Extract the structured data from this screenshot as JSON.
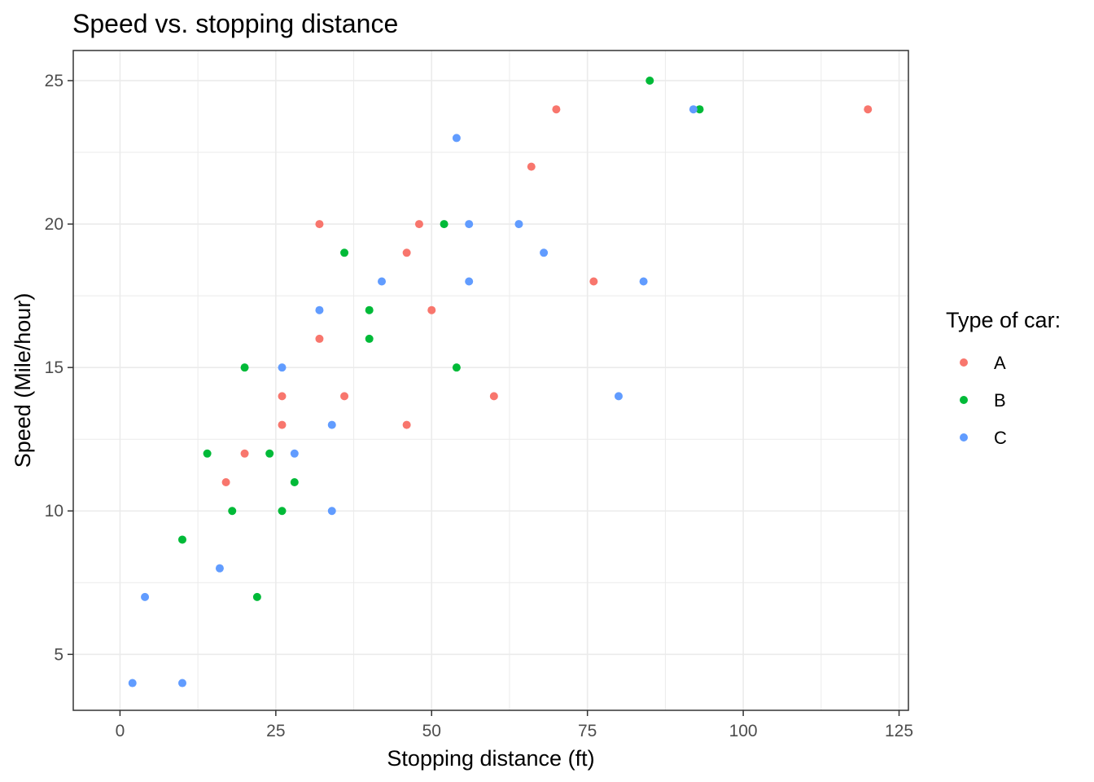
{
  "chart_data": {
    "type": "scatter",
    "title": "Speed vs. stopping distance",
    "xlabel": "Stopping distance (ft)",
    "ylabel": "Speed (Mile/hour)",
    "xlim": [
      -7.5,
      126.5
    ],
    "ylim": [
      3.05,
      26.05
    ],
    "xticks": [
      0,
      25,
      50,
      75,
      100,
      125
    ],
    "yticks": [
      5,
      10,
      15,
      20,
      25
    ],
    "grid": true,
    "legend": {
      "title": "Type of car:",
      "placement": "right"
    },
    "series": [
      {
        "name": "A",
        "color": "#F8766D",
        "points": [
          {
            "x": 70,
            "y": 24
          },
          {
            "x": 120,
            "y": 24
          },
          {
            "x": 66,
            "y": 22
          },
          {
            "x": 32,
            "y": 20
          },
          {
            "x": 48,
            "y": 20
          },
          {
            "x": 46,
            "y": 19
          },
          {
            "x": 76,
            "y": 18
          },
          {
            "x": 50,
            "y": 17
          },
          {
            "x": 32,
            "y": 16
          },
          {
            "x": 26,
            "y": 14
          },
          {
            "x": 36,
            "y": 14
          },
          {
            "x": 60,
            "y": 14
          },
          {
            "x": 26,
            "y": 13
          },
          {
            "x": 46,
            "y": 13
          },
          {
            "x": 20,
            "y": 12
          },
          {
            "x": 17,
            "y": 11
          }
        ]
      },
      {
        "name": "B",
        "color": "#00BA38",
        "points": [
          {
            "x": 85,
            "y": 25
          },
          {
            "x": 93,
            "y": 24
          },
          {
            "x": 52,
            "y": 20
          },
          {
            "x": 36,
            "y": 19
          },
          {
            "x": 40,
            "y": 17
          },
          {
            "x": 40,
            "y": 16
          },
          {
            "x": 20,
            "y": 15
          },
          {
            "x": 54,
            "y": 15
          },
          {
            "x": 14,
            "y": 12
          },
          {
            "x": 24,
            "y": 12
          },
          {
            "x": 28,
            "y": 11
          },
          {
            "x": 18,
            "y": 10
          },
          {
            "x": 26,
            "y": 10
          },
          {
            "x": 10,
            "y": 9
          },
          {
            "x": 22,
            "y": 7
          }
        ]
      },
      {
        "name": "C",
        "color": "#619CFF",
        "points": [
          {
            "x": 92,
            "y": 24
          },
          {
            "x": 54,
            "y": 23
          },
          {
            "x": 56,
            "y": 20
          },
          {
            "x": 64,
            "y": 20
          },
          {
            "x": 68,
            "y": 19
          },
          {
            "x": 42,
            "y": 18
          },
          {
            "x": 56,
            "y": 18
          },
          {
            "x": 84,
            "y": 18
          },
          {
            "x": 32,
            "y": 17
          },
          {
            "x": 26,
            "y": 15
          },
          {
            "x": 80,
            "y": 14
          },
          {
            "x": 34,
            "y": 13
          },
          {
            "x": 28,
            "y": 12
          },
          {
            "x": 34,
            "y": 10
          },
          {
            "x": 16,
            "y": 8
          },
          {
            "x": 4,
            "y": 7
          },
          {
            "x": 2,
            "y": 4
          },
          {
            "x": 10,
            "y": 4
          }
        ]
      }
    ]
  }
}
